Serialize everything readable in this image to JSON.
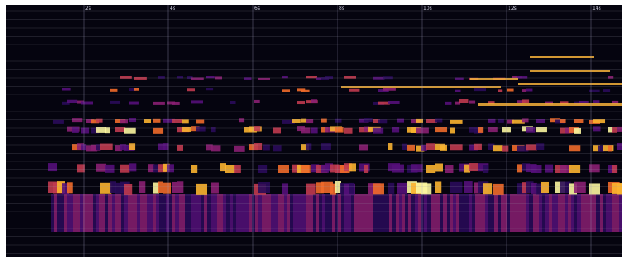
{
  "time_axis": {
    "labels": [
      "2s",
      "4s",
      "6s",
      "8s",
      "10s",
      "12s",
      "14s"
    ]
  }
}
